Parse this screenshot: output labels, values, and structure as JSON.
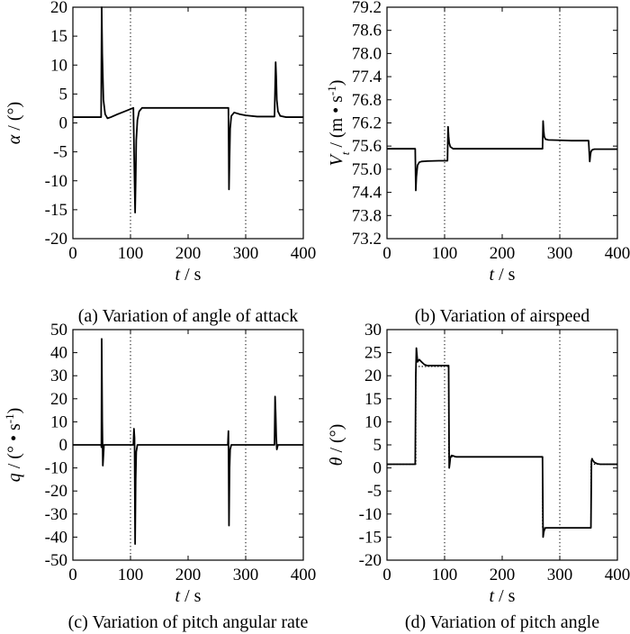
{
  "chart_data": [
    {
      "type": "line",
      "caption": "(a) Variation of angle of attack",
      "xlabel": {
        "var": "t",
        "unit": "s"
      },
      "ylabel": {
        "var": "α",
        "unit": "(°)"
      },
      "xlim": [
        0,
        400
      ],
      "ylim": [
        -20,
        20
      ],
      "xticks": [
        "0",
        "100",
        "200",
        "300",
        "400"
      ],
      "yticks": [
        "20",
        "15",
        "10",
        "5",
        "0",
        "-5",
        "-10",
        "-15",
        "-20"
      ],
      "vlines": [
        100,
        300
      ],
      "series": [
        {
          "style": "solid",
          "x": [
            0,
            49,
            50,
            51,
            53,
            56,
            60,
            66,
            75,
            90,
            105,
            107,
            108,
            109,
            110,
            112,
            115,
            120,
            150,
            270,
            271,
            272,
            273,
            275,
            280,
            290,
            300,
            320,
            350,
            352,
            353,
            354,
            356,
            360,
            370,
            400
          ],
          "y": [
            1,
            1,
            20,
            12,
            4,
            1.5,
            0.8,
            1,
            1.4,
            2,
            2.6,
            -10,
            -15.5,
            -10,
            -3,
            0.5,
            2,
            2.6,
            2.6,
            2.6,
            -11.5,
            -6,
            -1,
            1.2,
            1.8,
            1.5,
            1.3,
            1.1,
            1.1,
            10.5,
            8,
            4,
            2,
            1.2,
            1,
            1
          ]
        }
      ]
    },
    {
      "type": "line",
      "caption": "(b) Variation of airspeed",
      "xlabel": {
        "var": "t",
        "unit": "s"
      },
      "ylabel": {
        "var": "V",
        "sub": "t",
        "unit": "(m • s",
        "sup": "-1",
        "close": ")"
      },
      "xlim": [
        0,
        400
      ],
      "ylim": [
        73.2,
        79.2
      ],
      "xticks": [
        "0",
        "100",
        "200",
        "300",
        "400"
      ],
      "yticks": [
        "79.2",
        "78.6",
        "78.0",
        "77.4",
        "76.8",
        "76.2",
        "75.6",
        "75.0",
        "74.4",
        "73.8",
        "73.2"
      ],
      "vlines": [
        100,
        300
      ],
      "series": [
        {
          "style": "solid",
          "x": [
            0,
            49,
            50,
            51,
            53,
            56,
            60,
            70,
            90,
            105,
            106,
            107,
            108,
            110,
            115,
            120,
            150,
            270,
            271,
            272,
            273,
            275,
            280,
            300,
            320,
            350,
            352,
            353,
            354,
            356,
            360,
            400
          ],
          "y": [
            75.53,
            75.53,
            74.45,
            74.8,
            75.1,
            75.18,
            75.2,
            75.21,
            75.22,
            75.22,
            76.1,
            75.85,
            75.68,
            75.58,
            75.53,
            75.53,
            75.53,
            75.53,
            76.25,
            76.0,
            75.85,
            75.78,
            75.76,
            75.75,
            75.74,
            75.74,
            75.2,
            75.35,
            75.45,
            75.5,
            75.52,
            75.52
          ]
        }
      ]
    },
    {
      "type": "line",
      "caption": "(c) Variation of pitch angular rate",
      "xlabel": {
        "var": "t",
        "unit": "s"
      },
      "ylabel": {
        "var": "q",
        "unit": "(° • s",
        "sup": "-1",
        "close": ")"
      },
      "xlim": [
        0,
        400
      ],
      "ylim": [
        -50,
        50
      ],
      "xticks": [
        "0",
        "100",
        "200",
        "300",
        "400"
      ],
      "yticks": [
        "50",
        "40",
        "30",
        "20",
        "10",
        "0",
        "-10",
        "-20",
        "-30",
        "-40",
        "-50"
      ],
      "vlines": [
        100,
        300
      ],
      "series": [
        {
          "style": "solid",
          "x": [
            0,
            49,
            49.5,
            50,
            51,
            52,
            54,
            60,
            105,
            106,
            107,
            108,
            109,
            110,
            112,
            120,
            269,
            270,
            271,
            272,
            273,
            275,
            280,
            350,
            351,
            352,
            353,
            354,
            356,
            360,
            400
          ],
          "y": [
            0,
            0,
            -1,
            46,
            10,
            -9,
            0,
            0,
            0,
            7,
            3,
            -43,
            -15,
            -3,
            0,
            0,
            0,
            6,
            -35,
            -10,
            -2,
            0,
            0,
            0,
            21,
            14,
            4,
            -2,
            0,
            0,
            0
          ]
        }
      ]
    },
    {
      "type": "line",
      "caption": "(d) Variation of pitch angle",
      "xlabel": {
        "var": "t",
        "unit": "s"
      },
      "ylabel": {
        "var": "θ",
        "unit": "(°)"
      },
      "xlim": [
        0,
        400
      ],
      "ylim": [
        -20,
        30
      ],
      "xticks": [
        "0",
        "100",
        "200",
        "300",
        "400"
      ],
      "yticks": [
        "30",
        "25",
        "20",
        "15",
        "10",
        "5",
        "0",
        "-5",
        "-10",
        "-15",
        "-20"
      ],
      "vlines": [
        100,
        300
      ],
      "series": [
        {
          "style": "solid",
          "x": [
            0,
            49,
            50,
            51,
            53,
            56,
            60,
            65,
            70,
            90,
            107,
            108,
            109,
            110,
            112,
            115,
            120,
            130,
            150,
            270,
            271,
            272,
            273,
            275,
            280,
            290,
            300,
            354,
            355,
            356,
            357,
            360,
            365,
            370,
            400
          ],
          "y": [
            0.8,
            0.8,
            20,
            26,
            23,
            23.5,
            23,
            22.4,
            22.2,
            22.2,
            22.2,
            0,
            1,
            2.2,
            2.7,
            2.6,
            2.4,
            2.4,
            2.4,
            2.4,
            -15,
            -14,
            -13.5,
            -13,
            -13,
            -13,
            -13,
            -13,
            1.5,
            2,
            1.7,
            1.2,
            0.9,
            0.8,
            0.8
          ]
        },
        {
          "style": "dotted",
          "x": [
            0,
            50,
            50.1,
            107,
            107.1,
            270,
            270.1,
            354,
            354.1,
            400
          ],
          "y": [
            0.8,
            0.8,
            22,
            22,
            2.4,
            2.4,
            -13,
            -13,
            0.8,
            0.8
          ]
        }
      ]
    }
  ]
}
